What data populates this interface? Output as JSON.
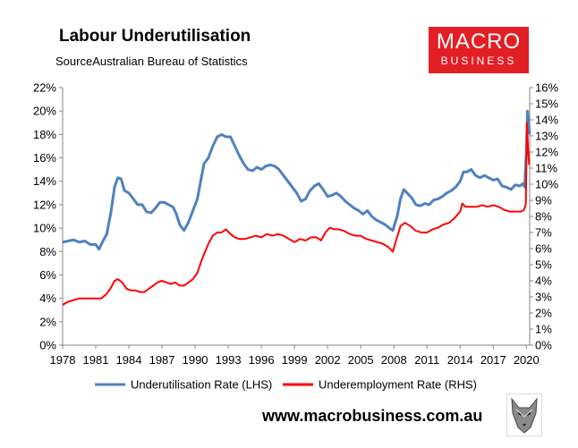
{
  "header": {
    "title": "Labour Underutilisation",
    "source": "SourceAustralian Bureau of Statistics"
  },
  "logo": {
    "line1": "MACRO",
    "line2": "BUSINESS",
    "color": "#e31f26"
  },
  "footer": {
    "url": "www.macrobusiness.com.au",
    "mascot_icon": "wolf-head-icon"
  },
  "chart_data": {
    "type": "line",
    "grid": false,
    "legend_position": "bottom",
    "x_ticks": [
      "1978",
      "1981",
      "1984",
      "1987",
      "1990",
      "1993",
      "1996",
      "1999",
      "2002",
      "2005",
      "2008",
      "2011",
      "2014",
      "2017",
      "2020"
    ],
    "xlim": [
      1978,
      2020.3
    ],
    "y_left": {
      "ticks": [
        "0%",
        "2%",
        "4%",
        "6%",
        "8%",
        "10%",
        "12%",
        "14%",
        "16%",
        "18%",
        "20%",
        "22%"
      ],
      "range": [
        0,
        22
      ]
    },
    "y_right": {
      "ticks": [
        "0%",
        "1%",
        "2%",
        "3%",
        "4%",
        "5%",
        "6%",
        "7%",
        "8%",
        "9%",
        "10%",
        "11%",
        "12%",
        "13%",
        "14%",
        "15%",
        "16%"
      ],
      "range": [
        0,
        16
      ]
    },
    "series": [
      {
        "name": "Underutilisation Rate (LHS)",
        "axis": "left",
        "color": "#4f81bd",
        "points": [
          [
            1978.0,
            8.8
          ],
          [
            1978.5,
            8.9
          ],
          [
            1979.0,
            9.0
          ],
          [
            1979.5,
            8.8
          ],
          [
            1980.0,
            8.9
          ],
          [
            1980.5,
            8.6
          ],
          [
            1981.0,
            8.6
          ],
          [
            1981.3,
            8.2
          ],
          [
            1981.6,
            8.8
          ],
          [
            1982.0,
            9.5
          ],
          [
            1982.4,
            11.5
          ],
          [
            1982.7,
            13.5
          ],
          [
            1983.0,
            14.3
          ],
          [
            1983.3,
            14.2
          ],
          [
            1983.6,
            13.2
          ],
          [
            1984.0,
            13.0
          ],
          [
            1984.4,
            12.5
          ],
          [
            1984.8,
            12.0
          ],
          [
            1985.2,
            12.0
          ],
          [
            1985.6,
            11.4
          ],
          [
            1986.0,
            11.3
          ],
          [
            1986.4,
            11.7
          ],
          [
            1986.8,
            12.2
          ],
          [
            1987.2,
            12.2
          ],
          [
            1987.6,
            12.0
          ],
          [
            1988.0,
            11.8
          ],
          [
            1988.3,
            11.2
          ],
          [
            1988.6,
            10.3
          ],
          [
            1989.0,
            9.8
          ],
          [
            1989.4,
            10.5
          ],
          [
            1989.8,
            11.5
          ],
          [
            1990.2,
            12.5
          ],
          [
            1990.5,
            14.0
          ],
          [
            1990.8,
            15.5
          ],
          [
            1991.2,
            16.0
          ],
          [
            1991.6,
            17.0
          ],
          [
            1992.0,
            17.8
          ],
          [
            1992.4,
            18.0
          ],
          [
            1992.8,
            17.8
          ],
          [
            1993.2,
            17.8
          ],
          [
            1993.6,
            17.0
          ],
          [
            1994.0,
            16.2
          ],
          [
            1994.4,
            15.5
          ],
          [
            1994.8,
            15.0
          ],
          [
            1995.2,
            14.9
          ],
          [
            1995.6,
            15.2
          ],
          [
            1996.0,
            15.0
          ],
          [
            1996.4,
            15.3
          ],
          [
            1996.8,
            15.4
          ],
          [
            1997.2,
            15.3
          ],
          [
            1997.6,
            15.0
          ],
          [
            1998.0,
            14.5
          ],
          [
            1998.4,
            14.0
          ],
          [
            1998.8,
            13.5
          ],
          [
            1999.2,
            13.0
          ],
          [
            1999.6,
            12.3
          ],
          [
            2000.0,
            12.5
          ],
          [
            2000.4,
            13.2
          ],
          [
            2000.8,
            13.6
          ],
          [
            2001.2,
            13.8
          ],
          [
            2001.6,
            13.3
          ],
          [
            2002.0,
            12.7
          ],
          [
            2002.4,
            12.8
          ],
          [
            2002.8,
            13.0
          ],
          [
            2003.2,
            12.7
          ],
          [
            2003.6,
            12.3
          ],
          [
            2004.0,
            12.0
          ],
          [
            2004.4,
            11.7
          ],
          [
            2004.8,
            11.5
          ],
          [
            2005.2,
            11.2
          ],
          [
            2005.6,
            11.5
          ],
          [
            2006.0,
            11.0
          ],
          [
            2006.4,
            10.7
          ],
          [
            2006.8,
            10.5
          ],
          [
            2007.2,
            10.3
          ],
          [
            2007.6,
            10.0
          ],
          [
            2007.9,
            9.8
          ],
          [
            2008.3,
            11.0
          ],
          [
            2008.6,
            12.5
          ],
          [
            2008.9,
            13.3
          ],
          [
            2009.2,
            13.0
          ],
          [
            2009.6,
            12.6
          ],
          [
            2010.0,
            12.0
          ],
          [
            2010.4,
            11.9
          ],
          [
            2010.8,
            12.1
          ],
          [
            2011.2,
            12.0
          ],
          [
            2011.6,
            12.4
          ],
          [
            2012.0,
            12.5
          ],
          [
            2012.4,
            12.7
          ],
          [
            2012.8,
            13.0
          ],
          [
            2013.2,
            13.2
          ],
          [
            2013.6,
            13.5
          ],
          [
            2014.0,
            14.0
          ],
          [
            2014.3,
            14.8
          ],
          [
            2014.6,
            14.8
          ],
          [
            2015.0,
            15.0
          ],
          [
            2015.4,
            14.5
          ],
          [
            2015.8,
            14.3
          ],
          [
            2016.2,
            14.5
          ],
          [
            2016.6,
            14.3
          ],
          [
            2017.0,
            14.1
          ],
          [
            2017.4,
            14.2
          ],
          [
            2017.8,
            13.6
          ],
          [
            2018.2,
            13.5
          ],
          [
            2018.6,
            13.3
          ],
          [
            2019.0,
            13.7
          ],
          [
            2019.4,
            13.6
          ],
          [
            2019.7,
            13.8
          ],
          [
            2019.85,
            13.5
          ],
          [
            2020.0,
            16.5
          ],
          [
            2020.1,
            20.0
          ],
          [
            2020.2,
            19.0
          ],
          [
            2020.3,
            18.0
          ]
        ]
      },
      {
        "name": "Underemployment Rate (RHS)",
        "axis": "right",
        "color": "#ff0000",
        "points": [
          [
            1978.0,
            2.5
          ],
          [
            1978.5,
            2.7
          ],
          [
            1979.0,
            2.8
          ],
          [
            1979.5,
            2.9
          ],
          [
            1980.0,
            2.9
          ],
          [
            1980.5,
            2.9
          ],
          [
            1981.0,
            2.9
          ],
          [
            1981.5,
            2.9
          ],
          [
            1982.0,
            3.2
          ],
          [
            1982.4,
            3.6
          ],
          [
            1982.7,
            4.0
          ],
          [
            1983.0,
            4.1
          ],
          [
            1983.4,
            3.9
          ],
          [
            1983.8,
            3.5
          ],
          [
            1984.2,
            3.4
          ],
          [
            1984.6,
            3.4
          ],
          [
            1985.0,
            3.3
          ],
          [
            1985.4,
            3.3
          ],
          [
            1985.8,
            3.5
          ],
          [
            1986.2,
            3.7
          ],
          [
            1986.6,
            3.9
          ],
          [
            1987.0,
            4.0
          ],
          [
            1987.4,
            3.9
          ],
          [
            1987.8,
            3.8
          ],
          [
            1988.2,
            3.9
          ],
          [
            1988.6,
            3.7
          ],
          [
            1989.0,
            3.7
          ],
          [
            1989.4,
            3.9
          ],
          [
            1989.8,
            4.1
          ],
          [
            1990.2,
            4.5
          ],
          [
            1990.6,
            5.3
          ],
          [
            1990.9,
            5.8
          ],
          [
            1991.2,
            6.3
          ],
          [
            1991.6,
            6.8
          ],
          [
            1992.0,
            7.0
          ],
          [
            1992.4,
            7.0
          ],
          [
            1992.8,
            7.2
          ],
          [
            1993.2,
            6.9
          ],
          [
            1993.6,
            6.7
          ],
          [
            1994.0,
            6.6
          ],
          [
            1994.5,
            6.6
          ],
          [
            1995.0,
            6.7
          ],
          [
            1995.5,
            6.8
          ],
          [
            1996.0,
            6.7
          ],
          [
            1996.5,
            6.9
          ],
          [
            1997.0,
            6.8
          ],
          [
            1997.5,
            6.9
          ],
          [
            1998.0,
            6.8
          ],
          [
            1998.5,
            6.6
          ],
          [
            1999.0,
            6.4
          ],
          [
            1999.5,
            6.6
          ],
          [
            2000.0,
            6.5
          ],
          [
            2000.5,
            6.7
          ],
          [
            2001.0,
            6.7
          ],
          [
            2001.4,
            6.5
          ],
          [
            2001.8,
            7.0
          ],
          [
            2002.2,
            7.3
          ],
          [
            2002.6,
            7.2
          ],
          [
            2003.0,
            7.2
          ],
          [
            2003.5,
            7.1
          ],
          [
            2004.0,
            6.9
          ],
          [
            2004.5,
            6.8
          ],
          [
            2005.0,
            6.8
          ],
          [
            2005.5,
            6.6
          ],
          [
            2006.0,
            6.5
          ],
          [
            2006.5,
            6.4
          ],
          [
            2007.0,
            6.3
          ],
          [
            2007.5,
            6.1
          ],
          [
            2007.9,
            5.8
          ],
          [
            2008.2,
            6.5
          ],
          [
            2008.6,
            7.4
          ],
          [
            2009.0,
            7.6
          ],
          [
            2009.5,
            7.4
          ],
          [
            2010.0,
            7.1
          ],
          [
            2010.5,
            7.0
          ],
          [
            2011.0,
            7.0
          ],
          [
            2011.5,
            7.2
          ],
          [
            2012.0,
            7.3
          ],
          [
            2012.5,
            7.5
          ],
          [
            2013.0,
            7.6
          ],
          [
            2013.5,
            7.9
          ],
          [
            2014.0,
            8.3
          ],
          [
            2014.2,
            8.8
          ],
          [
            2014.5,
            8.6
          ],
          [
            2015.0,
            8.6
          ],
          [
            2015.5,
            8.6
          ],
          [
            2016.0,
            8.7
          ],
          [
            2016.5,
            8.6
          ],
          [
            2017.0,
            8.7
          ],
          [
            2017.5,
            8.6
          ],
          [
            2018.0,
            8.4
          ],
          [
            2018.5,
            8.3
          ],
          [
            2019.0,
            8.3
          ],
          [
            2019.5,
            8.3
          ],
          [
            2019.8,
            8.4
          ],
          [
            2019.95,
            8.8
          ],
          [
            2020.05,
            13.8
          ],
          [
            2020.15,
            12.3
          ],
          [
            2020.25,
            11.2
          ]
        ]
      }
    ]
  }
}
